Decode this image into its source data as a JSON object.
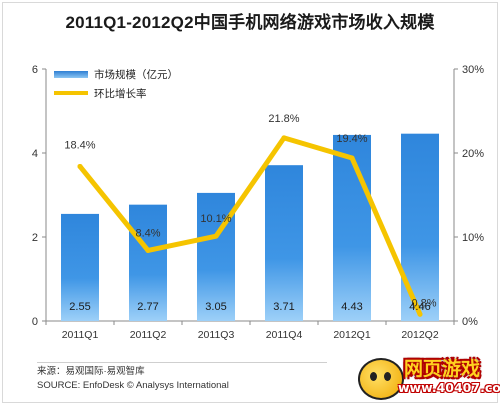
{
  "title": "2011Q1-2012Q2中国手机网络游戏市场收入规模",
  "chart_data": {
    "type": "bar+line",
    "categories": [
      "2011Q1",
      "2011Q2",
      "2011Q3",
      "2011Q4",
      "2012Q1",
      "2012Q2"
    ],
    "series": [
      {
        "name": "市场规模（亿元）",
        "type": "bar",
        "axis": "left",
        "values": [
          2.55,
          2.77,
          3.05,
          3.71,
          4.43,
          4.46
        ],
        "labels": [
          "2.55",
          "2.77",
          "3.05",
          "3.71",
          "4.43",
          "4.46"
        ],
        "color": "#2e7fd3"
      },
      {
        "name": "环比增长率",
        "type": "line",
        "axis": "right",
        "values": [
          18.4,
          8.4,
          10.1,
          21.8,
          19.4,
          0.8
        ],
        "labels": [
          "18.4%",
          "8.4%",
          "10.1%",
          "21.8%",
          "19.4%",
          "0.8%"
        ],
        "color": "#f5c400"
      }
    ],
    "y_left": {
      "min": 0,
      "max": 6,
      "ticks": [
        0,
        2,
        4,
        6
      ],
      "tick_labels": [
        "0",
        "2",
        "4",
        "6"
      ]
    },
    "y_right": {
      "min": 0,
      "max": 30,
      "ticks": [
        0,
        10,
        20,
        30
      ],
      "tick_labels": [
        "0%",
        "10%",
        "20%",
        "30%"
      ]
    },
    "legend_position": "top-left",
    "grid": false
  },
  "source": {
    "line1": "来源：易观国际·易观智库",
    "line2": "SOURCE: EnfoDesk © Analysys International"
  },
  "watermark": {
    "title": "网页游戏",
    "url": "www.40407.com"
  }
}
